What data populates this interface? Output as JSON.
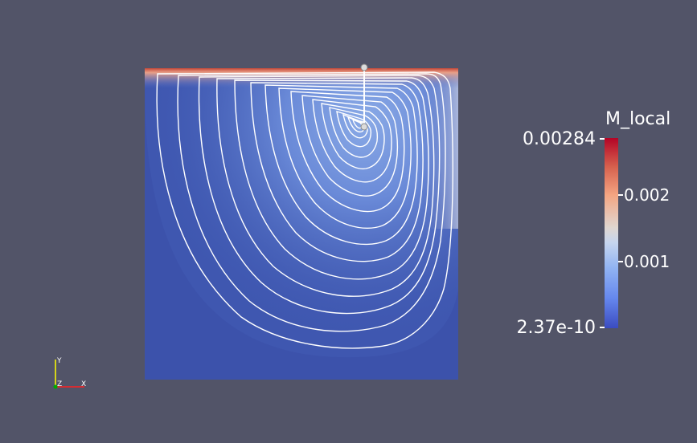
{
  "legend": {
    "title": "M_local",
    "max_label": "0.00284",
    "min_label": "2.37e-10",
    "tick_labels": [
      "0.002",
      "0.001"
    ]
  },
  "axes": {
    "x_label": "X",
    "y_label": "Y",
    "z_label": "Z"
  },
  "colors": {
    "background": "#525468",
    "low": "#3b4cc0",
    "mid": "#dddddd",
    "high": "#b40426",
    "streamline": "#ffffff",
    "axis_x": "#ff2020",
    "axis_y": "#ffff00",
    "axis_z": "#00aa00"
  }
}
